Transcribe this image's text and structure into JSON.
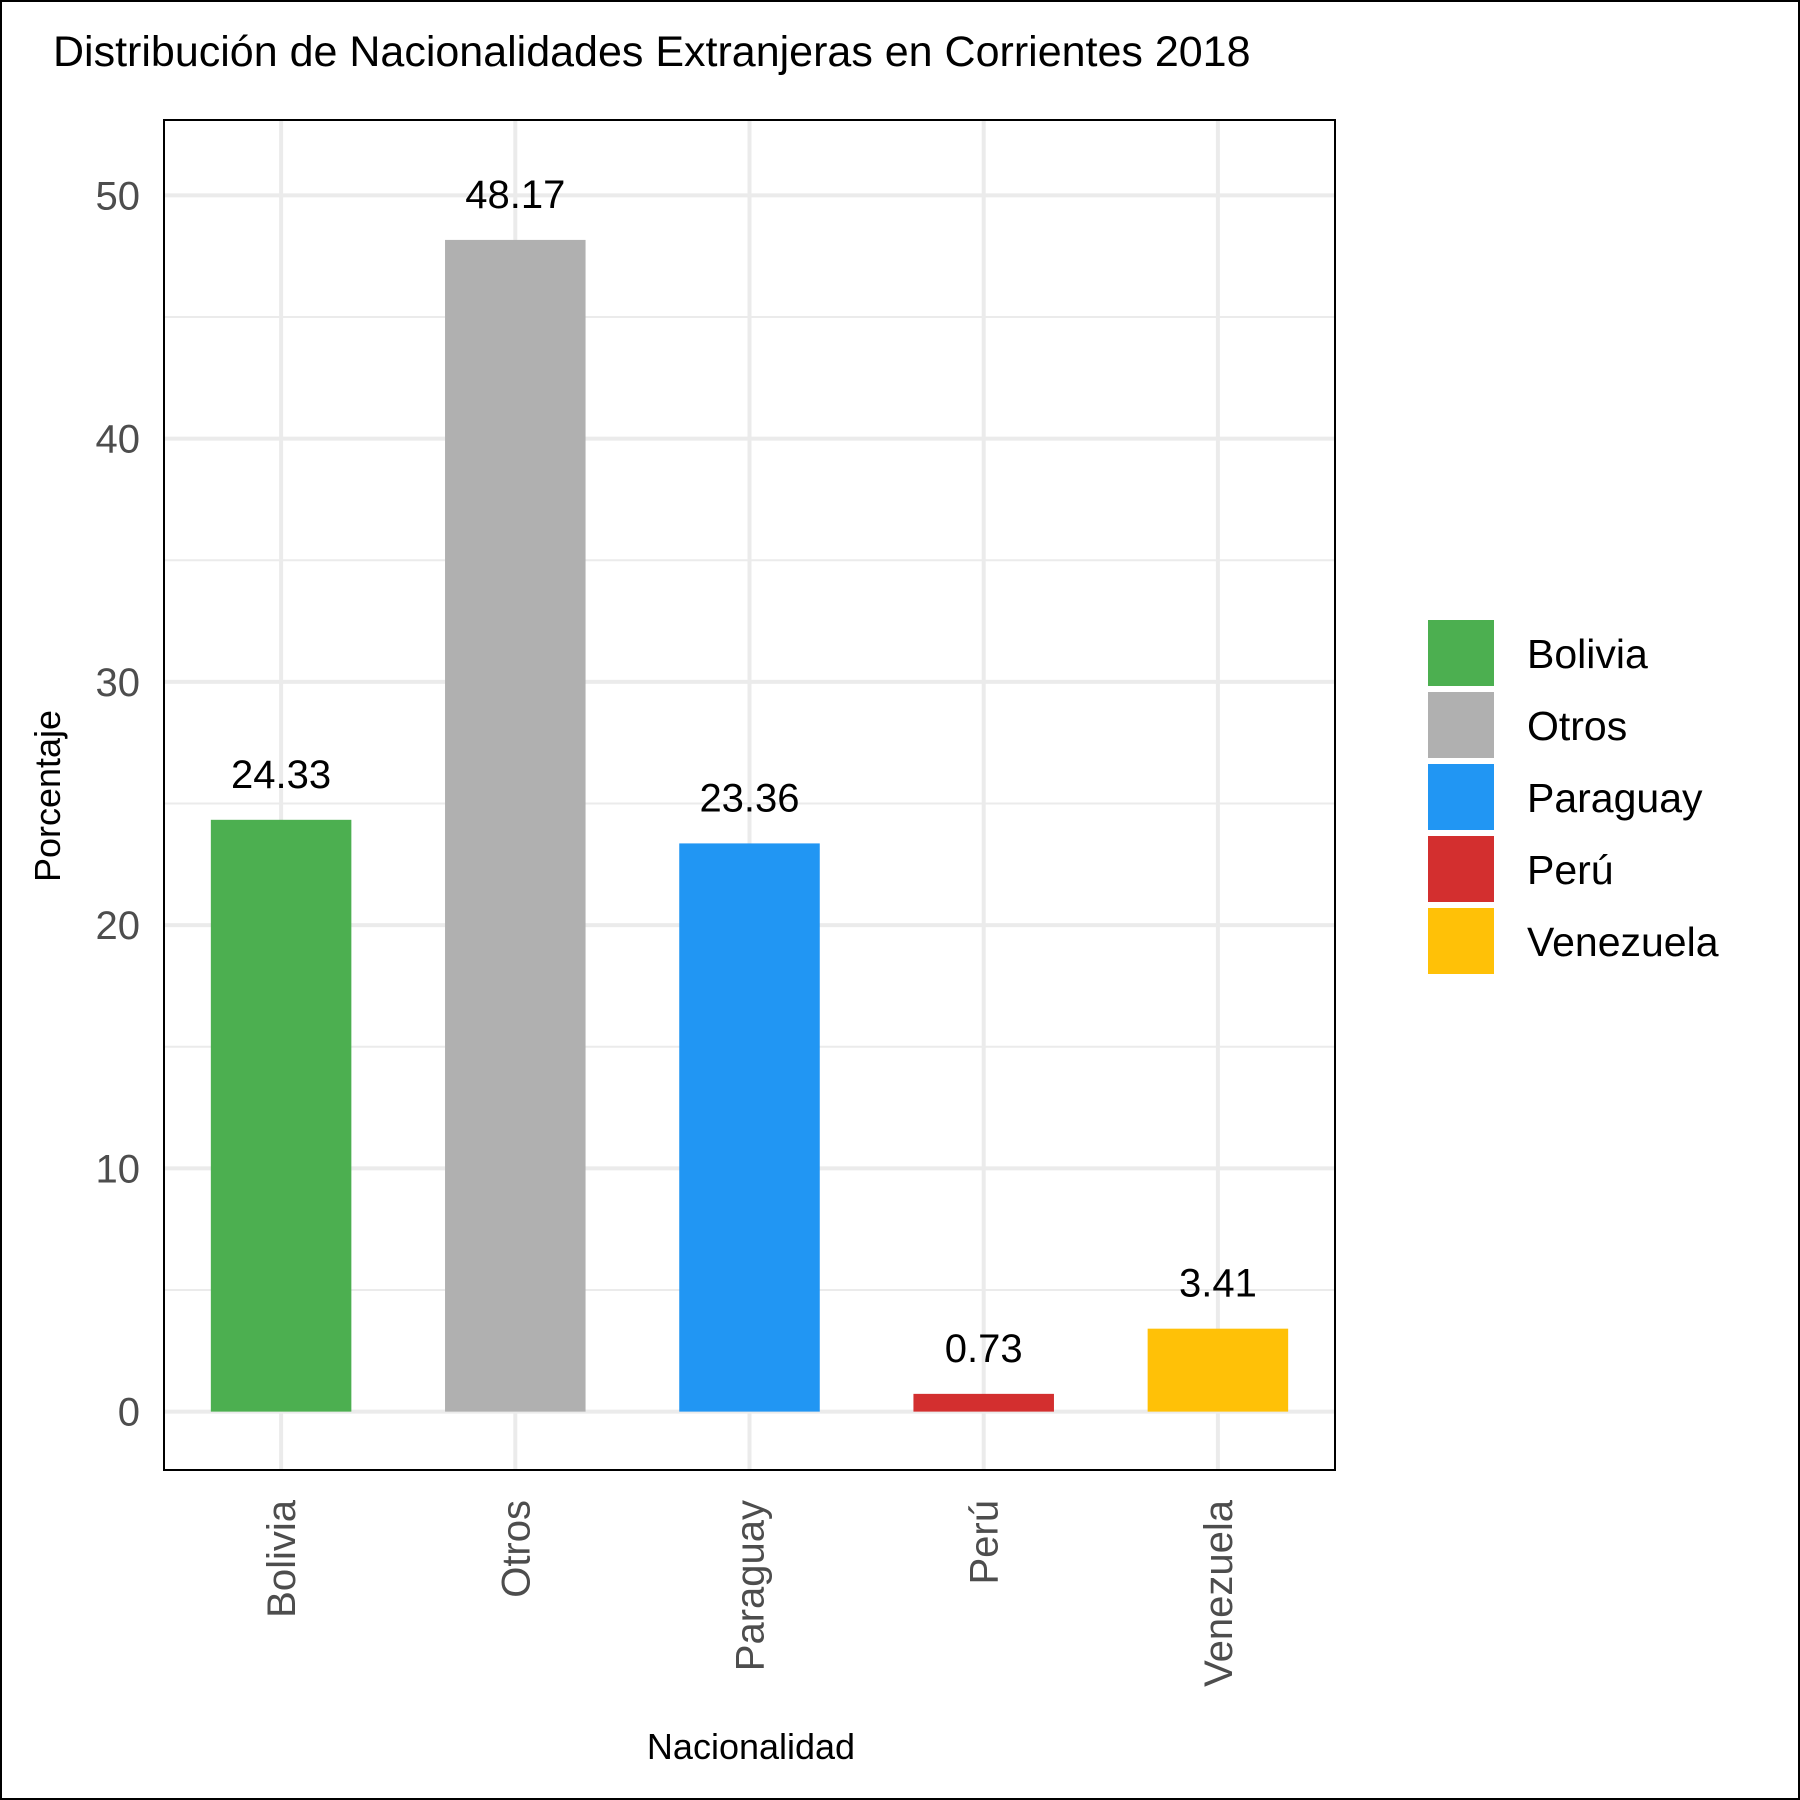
{
  "chart_data": {
    "type": "bar",
    "title": "Distribución de Nacionalidades Extranjeras en Corrientes 2018",
    "xlabel": "Nacionalidad",
    "ylabel": "Porcentaje",
    "categories": [
      "Bolivia",
      "Otros",
      "Paraguay",
      "Perú",
      "Venezuela"
    ],
    "values": [
      24.33,
      48.17,
      23.36,
      0.73,
      3.41
    ],
    "value_labels": [
      "24.33",
      "48.17",
      "23.36",
      "0.73",
      "3.41"
    ],
    "colors": [
      "#4caf50",
      "#b0b0b0",
      "#2196f3",
      "#d32f2f",
      "#ffc107"
    ],
    "ylim": [
      -2.4,
      53.1
    ],
    "yticks": [
      0,
      10,
      20,
      30,
      40,
      50
    ],
    "grid": true,
    "legend": {
      "position": "right",
      "entries": [
        "Bolivia",
        "Otros",
        "Paraguay",
        "Perú",
        "Venezuela"
      ]
    }
  }
}
